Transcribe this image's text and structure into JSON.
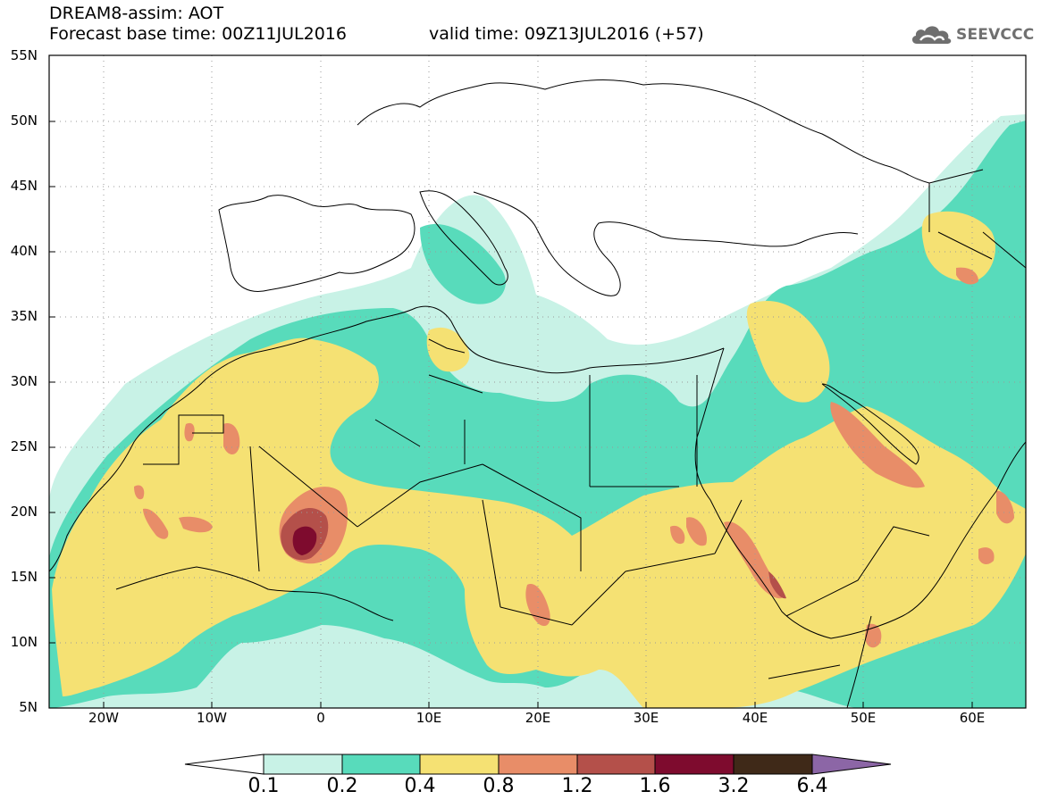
{
  "title": {
    "line1": "DREAM8-assim: AOT",
    "base_time": "Forecast base time: 00Z11JUL2016",
    "valid_time": "valid time: 09Z13JUL2016 (+57)"
  },
  "logo": {
    "text": "SEEVCCC",
    "icon": "cloud-icon"
  },
  "map": {
    "lat_labels": [
      "55N",
      "50N",
      "45N",
      "40N",
      "35N",
      "30N",
      "25N",
      "20N",
      "15N",
      "10N",
      "5N"
    ],
    "lon_labels": [
      "20W",
      "10W",
      "0",
      "10E",
      "20E",
      "30E",
      "40E",
      "50E",
      "60E"
    ],
    "lat_range": [
      5,
      55
    ],
    "lon_range": [
      -25,
      65
    ],
    "grid": "dotted",
    "variable": "Aerosol optical depth"
  },
  "colorbar": {
    "levels": [
      "0.1",
      "0.2",
      "0.4",
      "0.8",
      "1.2",
      "1.6",
      "3.2",
      "6.4"
    ],
    "colors": [
      "#c8f2e6",
      "#58dbbb",
      "#f5e173",
      "#e88d68",
      "#b4504a",
      "#7e0b2e",
      "#3f2918",
      "#8c66a6"
    ],
    "under_color": "#ffffff",
    "over_color": "#8c66a6"
  }
}
